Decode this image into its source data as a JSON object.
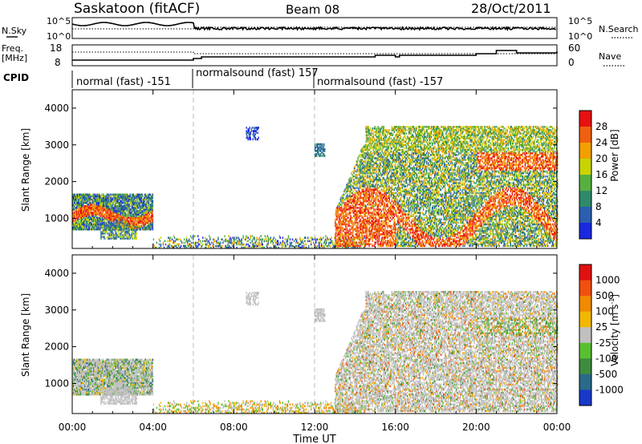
{
  "header": {
    "station": "Saskatoon (fitACF)",
    "beam": "Beam 08",
    "date": "28/Oct/2011"
  },
  "panels": {
    "nsky_label": "N.Sky",
    "nsearch_label": "N.Search",
    "freq_label_top": "Freq.",
    "freq_label_bottom": "[MHz]",
    "nave_label": "Nave",
    "cpid_label": "CPID",
    "nsky_ticks": [
      "10^5",
      "10^0"
    ],
    "nsearch_ticks": [
      "10^5",
      "10^0"
    ],
    "freq_ticks": [
      "18",
      "8"
    ],
    "nave_ticks": [
      "60",
      "0"
    ],
    "cpid_segments": [
      {
        "label": "normal (fast) -151",
        "start": "00:00",
        "end": "06:00"
      },
      {
        "label": "normalsound (fast) 157",
        "start": "06:00",
        "end": "12:00"
      },
      {
        "label": "normalsound (fast) -157",
        "start": "12:00",
        "end": "24:00"
      }
    ]
  },
  "chart_data": [
    {
      "type": "heatmap",
      "name": "power",
      "ylabel": "Slant Range [km]",
      "ylim": [
        180,
        4500
      ],
      "yticks": [
        1000,
        2000,
        3000,
        4000
      ],
      "colorbar_label": "Power [dB]",
      "colorbar_ticks": [
        "4",
        "8",
        "12",
        "16",
        "20",
        "24",
        "28"
      ],
      "colorbar_colors": [
        "#1a28e0",
        "#2a5fb0",
        "#2f8a6a",
        "#56b040",
        "#c8d400",
        "#f2a000",
        "#f06010",
        "#e81010"
      ]
    },
    {
      "type": "heatmap",
      "name": "velocity",
      "ylabel": "Slant Range [km]",
      "ylim": [
        180,
        4500
      ],
      "yticks": [
        1000,
        2000,
        3000,
        4000
      ],
      "xlabel": "Time UT",
      "xticks": [
        "00:00",
        "04:00",
        "08:00",
        "12:00",
        "16:00",
        "20:00",
        "00:00"
      ],
      "colorbar_label": "Velocity [m s^-1]",
      "colorbar_ticks": [
        "1000",
        "500",
        "100",
        "25",
        "-25",
        "-100",
        "-500",
        "-1000"
      ],
      "colorbar_colors": [
        "#1838c8",
        "#2a6a8a",
        "#3e8c3e",
        "#58c030",
        "#c0c0c0",
        "#f2b800",
        "#f08a00",
        "#f05010",
        "#e01010"
      ]
    }
  ]
}
